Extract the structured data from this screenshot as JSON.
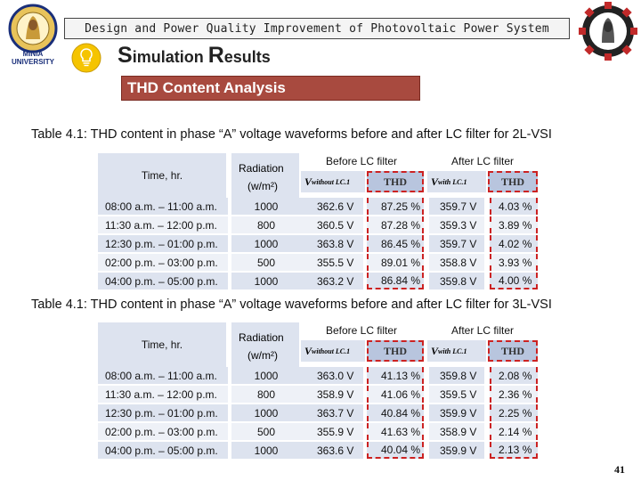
{
  "header": {
    "banner": "Design and Power Quality Improvement of Photovoltaic Power System",
    "left_logo_label": "MINIA UNIVERSITY"
  },
  "slide": {
    "title_first_s": "S",
    "title_rest_1": "imulation ",
    "title_r": "R",
    "title_rest_2": "esults",
    "section": "THD Content Analysis",
    "page_number": "41"
  },
  "columns": {
    "time": "Time, hr.",
    "radiation_1": "Radiation",
    "radiation_2": "(w/m²)",
    "before": "Before LC filter",
    "after": "After LC filter",
    "v_before_main": "V",
    "v_before_sub": "without LC.1",
    "v_after_main": "V",
    "v_after_sub": "with LC.1",
    "thd": "THD"
  },
  "table1": {
    "caption": "Table 4.1: THD content in phase “A” voltage waveforms before and after LC filter for 2L-VSI",
    "rows": [
      {
        "time": "08:00 a.m. – 11:00 a.m.",
        "rad": "1000",
        "vb": "362.6 V",
        "tb": "87.25 %",
        "va": "359.7 V",
        "ta": "4.03 %"
      },
      {
        "time": "11:30 a.m. – 12:00 p.m.",
        "rad": "800",
        "vb": "360.5 V",
        "tb": "87.28 %",
        "va": "359.3 V",
        "ta": "3.89 %"
      },
      {
        "time": "12:30 p.m. – 01:00 p.m.",
        "rad": "1000",
        "vb": "363.8 V",
        "tb": "86.45 %",
        "va": "359.7 V",
        "ta": "4.02 %"
      },
      {
        "time": "02:00 p.m. – 03:00 p.m.",
        "rad": "500",
        "vb": "355.5 V",
        "tb": "89.01 %",
        "va": "358.8 V",
        "ta": "3.93 %"
      },
      {
        "time": "04:00 p.m. – 05:00 p.m.",
        "rad": "1000",
        "vb": "363.2 V",
        "tb": "86.84 %",
        "va": "359.8 V",
        "ta": "4.00 %"
      }
    ]
  },
  "table2": {
    "caption": "Table 4.1: THD content in phase “A” voltage waveforms before and after LC filter for 3L-VSI",
    "rows": [
      {
        "time": "08:00 a.m. – 11:00 a.m.",
        "rad": "1000",
        "vb": "363.0 V",
        "tb": "41.13 %",
        "va": "359.8 V",
        "ta": "2.08 %"
      },
      {
        "time": "11:30 a.m. – 12:00 p.m.",
        "rad": "800",
        "vb": "358.9 V",
        "tb": "41.06 %",
        "va": "359.5 V",
        "ta": "2.36 %"
      },
      {
        "time": "12:30 p.m. – 01:00 p.m.",
        "rad": "1000",
        "vb": "363.7 V",
        "tb": "40.84 %",
        "va": "359.9 V",
        "ta": "2.25 %"
      },
      {
        "time": "02:00 p.m. – 03:00 p.m.",
        "rad": "500",
        "vb": "355.9 V",
        "tb": "41.63 %",
        "va": "358.9 V",
        "ta": "2.14 %"
      },
      {
        "time": "04:00 p.m. – 05:00 p.m.",
        "rad": "1000",
        "vb": "363.6 V",
        "tb": "40.04 %",
        "va": "359.9 V",
        "ta": "2.13 %"
      }
    ]
  },
  "colors": {
    "section_bar": "#a84a3f",
    "row_dark": "#dde3ef",
    "row_light": "#eef1f7",
    "thd_highlight": "#c22"
  }
}
